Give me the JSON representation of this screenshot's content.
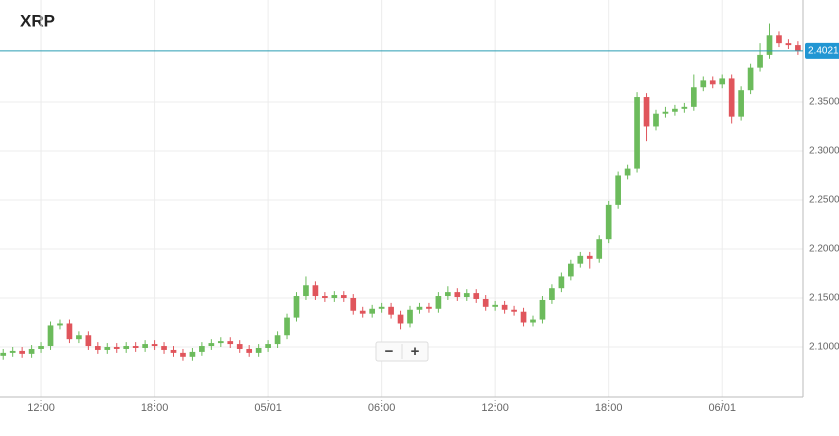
{
  "chart_data": {
    "type": "candlestick",
    "title": "XRP",
    "x": [
      10,
      10.5,
      11,
      11.5,
      12,
      12.5,
      13,
      13.5,
      14,
      14.5,
      15,
      15.5,
      16,
      16.5,
      17,
      17.5,
      18,
      18.5,
      19,
      19.5,
      20,
      20.5,
      21,
      21.5,
      22,
      22.5,
      23,
      23.5,
      24,
      24.5,
      25,
      25.5,
      26,
      26.5,
      27,
      27.5,
      28,
      28.5,
      29,
      29.5,
      30,
      30.5,
      31,
      31.5,
      32,
      32.5,
      33,
      33.5,
      34,
      34.5,
      35,
      35.5,
      36,
      36.5,
      37,
      37.5,
      38,
      38.5,
      39,
      39.5,
      40,
      40.5,
      41,
      41.5,
      42,
      42.5,
      43,
      43.5,
      44,
      44.5,
      45,
      45.5,
      46,
      46.5,
      47,
      47.5,
      48,
      48.5,
      49,
      49.5,
      50,
      50.5,
      51,
      51.5,
      52
    ],
    "open": [
      2.091,
      2.094,
      2.096,
      2.093,
      2.098,
      2.101,
      2.122,
      2.124,
      2.108,
      2.112,
      2.101,
      2.097,
      2.1,
      2.098,
      2.101,
      2.099,
      2.103,
      2.101,
      2.097,
      2.094,
      2.09,
      2.095,
      2.101,
      2.104,
      2.106,
      2.103,
      2.098,
      2.094,
      2.099,
      2.103,
      2.112,
      2.13,
      2.152,
      2.163,
      2.152,
      2.15,
      2.153,
      2.15,
      2.137,
      2.134,
      2.139,
      2.141,
      2.133,
      2.124,
      2.138,
      2.141,
      2.139,
      2.152,
      2.156,
      2.151,
      2.155,
      2.149,
      2.141,
      2.143,
      2.138,
      2.136,
      2.125,
      2.128,
      2.148,
      2.16,
      2.172,
      2.185,
      2.193,
      2.19,
      2.21,
      2.245,
      2.275,
      2.282,
      2.355,
      2.325,
      2.338,
      2.34,
      2.343,
      2.345,
      2.365,
      2.372,
      2.368,
      2.374,
      2.335,
      2.362,
      2.385,
      2.398,
      2.418,
      2.41,
      2.408
    ],
    "high": [
      2.098,
      2.1,
      2.1,
      2.102,
      2.105,
      2.126,
      2.128,
      2.128,
      2.116,
      2.116,
      2.105,
      2.104,
      2.104,
      2.105,
      2.105,
      2.107,
      2.107,
      2.105,
      2.101,
      2.098,
      2.099,
      2.105,
      2.108,
      2.11,
      2.11,
      2.107,
      2.102,
      2.103,
      2.107,
      2.116,
      2.134,
      2.156,
      2.172,
      2.167,
      2.156,
      2.157,
      2.157,
      2.154,
      2.141,
      2.143,
      2.145,
      2.145,
      2.137,
      2.142,
      2.145,
      2.145,
      2.156,
      2.162,
      2.16,
      2.159,
      2.159,
      2.153,
      2.147,
      2.147,
      2.142,
      2.14,
      2.132,
      2.152,
      2.164,
      2.176,
      2.189,
      2.197,
      2.197,
      2.214,
      2.249,
      2.279,
      2.286,
      2.36,
      2.359,
      2.342,
      2.345,
      2.347,
      2.349,
      2.378,
      2.376,
      2.376,
      2.378,
      2.378,
      2.366,
      2.389,
      2.41,
      2.43,
      2.422,
      2.414,
      2.412
    ],
    "low": [
      2.087,
      2.09,
      2.089,
      2.089,
      2.094,
      2.097,
      2.118,
      2.104,
      2.104,
      2.097,
      2.093,
      2.093,
      2.094,
      2.094,
      2.095,
      2.095,
      2.097,
      2.093,
      2.09,
      2.086,
      2.086,
      2.091,
      2.097,
      2.1,
      2.099,
      2.094,
      2.09,
      2.09,
      2.095,
      2.099,
      2.108,
      2.126,
      2.148,
      2.148,
      2.146,
      2.146,
      2.146,
      2.133,
      2.13,
      2.13,
      2.135,
      2.129,
      2.118,
      2.12,
      2.134,
      2.135,
      2.135,
      2.148,
      2.147,
      2.147,
      2.145,
      2.137,
      2.137,
      2.134,
      2.132,
      2.121,
      2.121,
      2.124,
      2.144,
      2.156,
      2.168,
      2.181,
      2.18,
      2.186,
      2.206,
      2.241,
      2.271,
      2.278,
      2.31,
      2.321,
      2.334,
      2.336,
      2.339,
      2.341,
      2.361,
      2.364,
      2.364,
      2.328,
      2.331,
      2.358,
      2.381,
      2.394,
      2.406,
      2.404,
      2.398
    ],
    "close": [
      2.094,
      2.096,
      2.093,
      2.098,
      2.101,
      2.122,
      2.124,
      2.108,
      2.112,
      2.101,
      2.097,
      2.1,
      2.098,
      2.101,
      2.099,
      2.103,
      2.101,
      2.097,
      2.094,
      2.09,
      2.095,
      2.101,
      2.104,
      2.106,
      2.103,
      2.098,
      2.094,
      2.099,
      2.103,
      2.112,
      2.13,
      2.152,
      2.163,
      2.152,
      2.15,
      2.153,
      2.15,
      2.137,
      2.134,
      2.139,
      2.141,
      2.133,
      2.124,
      2.138,
      2.141,
      2.139,
      2.152,
      2.156,
      2.151,
      2.155,
      2.149,
      2.141,
      2.143,
      2.138,
      2.136,
      2.125,
      2.128,
      2.148,
      2.16,
      2.172,
      2.185,
      2.193,
      2.19,
      2.21,
      2.245,
      2.275,
      2.282,
      2.355,
      2.325,
      2.338,
      2.34,
      2.343,
      2.345,
      2.365,
      2.372,
      2.368,
      2.374,
      2.335,
      2.362,
      2.385,
      2.398,
      2.418,
      2.41,
      2.408,
      2.402
    ],
    "up_color": "#6cbb5c",
    "down_color": "#e0555c",
    "xlim": [
      9.83,
      52.27
    ],
    "xticks": [
      {
        "value": 12,
        "label": "12:00"
      },
      {
        "value": 18,
        "label": "18:00"
      },
      {
        "value": 24,
        "label": "05/01"
      },
      {
        "value": 30,
        "label": "06:00"
      },
      {
        "value": 36,
        "label": "12:00"
      },
      {
        "value": 42,
        "label": "18:00"
      },
      {
        "value": 48,
        "label": "06/01"
      }
    ],
    "ylim": [
      2.049,
      2.454
    ],
    "yticks": [
      {
        "value": 2.1,
        "label": "2.1000"
      },
      {
        "value": 2.15,
        "label": "2.1500"
      },
      {
        "value": 2.2,
        "label": "2.2000"
      },
      {
        "value": 2.25,
        "label": "2.2500"
      },
      {
        "value": 2.3,
        "label": "2.3000"
      },
      {
        "value": 2.35,
        "label": "2.3500"
      }
    ],
    "grid": true,
    "last_price": 2.4021,
    "last_price_color": "#2a9db3",
    "zoom_out": "−",
    "zoom_in": "+"
  }
}
